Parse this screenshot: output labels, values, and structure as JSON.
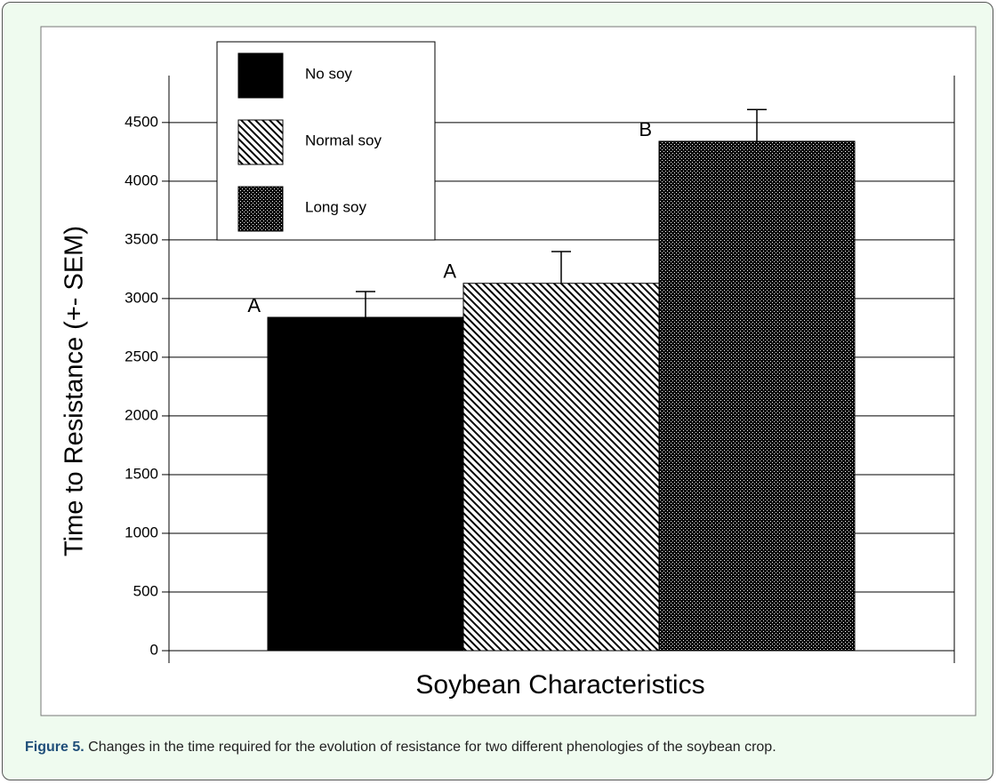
{
  "chart_data": {
    "type": "bar",
    "ylabel": "Time to Resistance (+- SEM)",
    "xlabel": "Soybean Characteristics",
    "series": [
      {
        "name": "No soy",
        "color": "#000000",
        "pattern": "solid",
        "values": [
          2840
        ],
        "errors": [
          220
        ],
        "labels": [
          "A"
        ]
      },
      {
        "name": "Normal soy",
        "color": "#000000",
        "pattern": "hatch",
        "values": [
          3130
        ],
        "errors": [
          270
        ],
        "labels": [
          "A"
        ]
      },
      {
        "name": "Long soy",
        "color": "#000000",
        "pattern": "dots",
        "values": [
          4340
        ],
        "errors": [
          270
        ],
        "labels": [
          "B"
        ]
      }
    ],
    "ylim": [
      0,
      4900
    ],
    "yticks": [
      0,
      500,
      1000,
      1500,
      2000,
      2500,
      3000,
      3500,
      4000,
      4500
    ],
    "grid": true
  },
  "caption": {
    "label": "Figure 5.",
    "text": "Changes in the time required for the evolution of resistance for two different phenologies of the soybean crop."
  }
}
